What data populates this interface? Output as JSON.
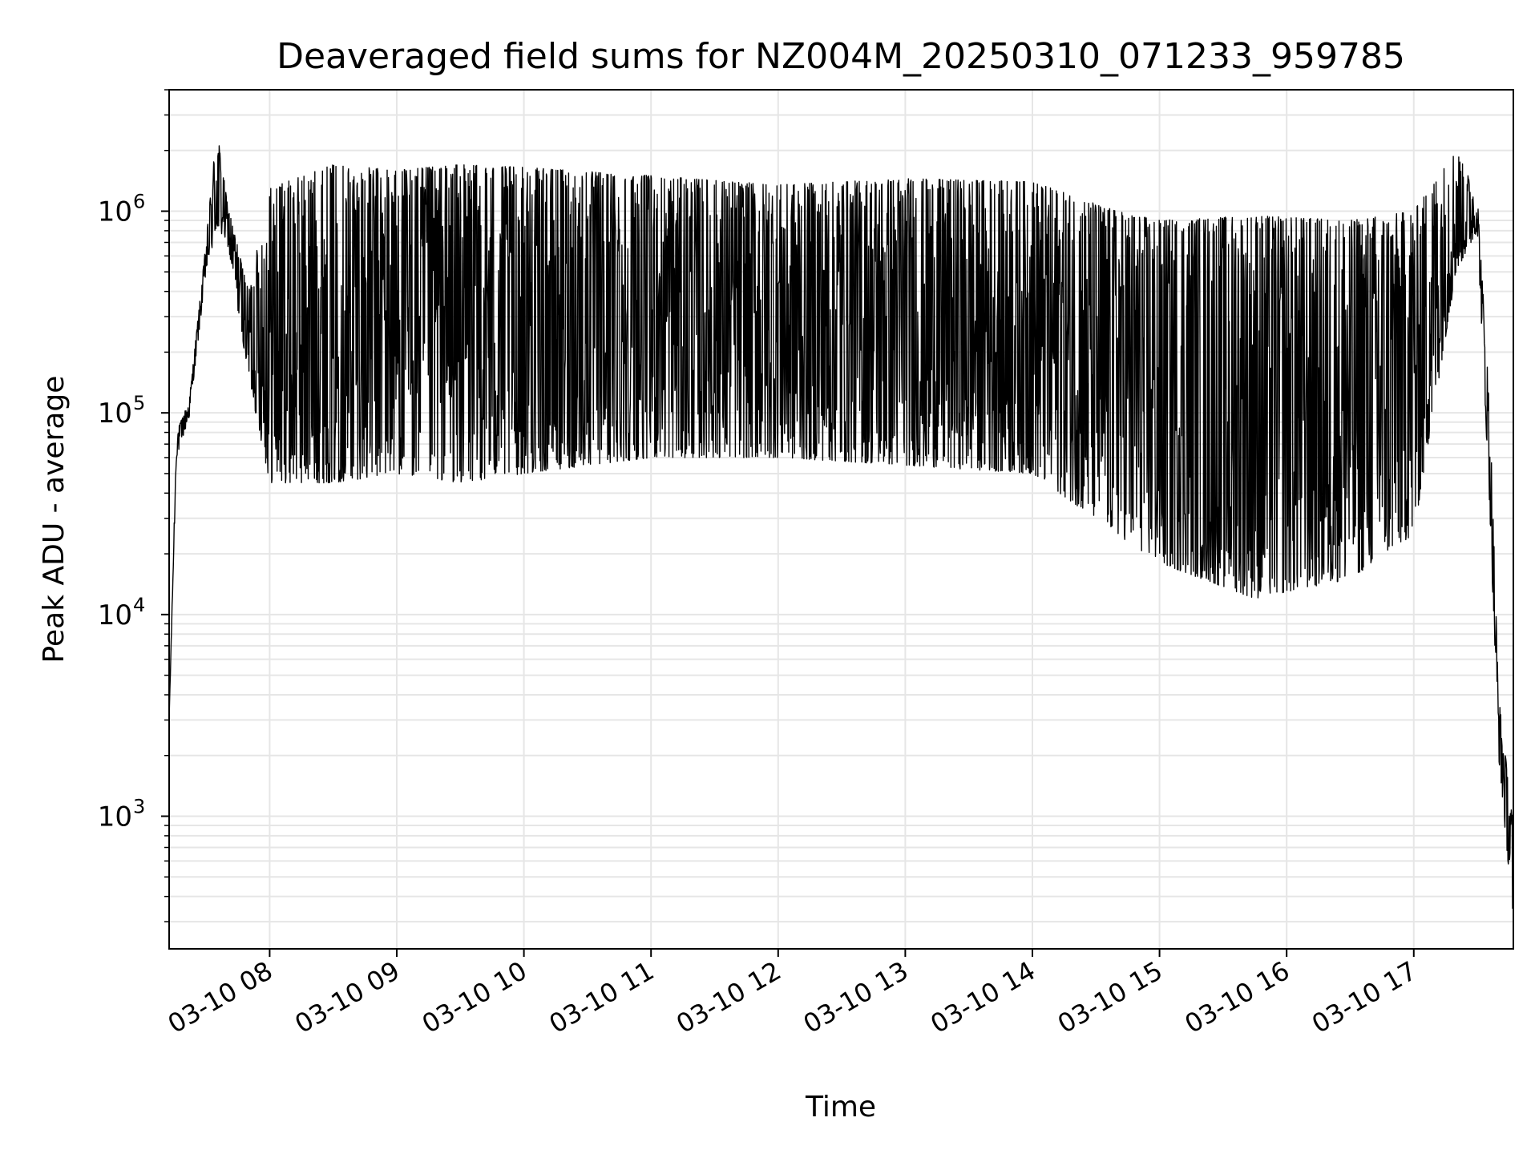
{
  "chart_data": {
    "type": "line",
    "title": "Deaveraged field sums for NZ004M_20250310_071233_959785",
    "xlabel": "Time",
    "ylabel": "Peak ADU - average",
    "yscale": "log",
    "xlim": [
      "2025-03-10T07:12:33",
      "2025-03-10T17:47:00"
    ],
    "ylim": [
      220,
      4000000
    ],
    "grid": true,
    "x_ticks": [
      {
        "value": "2025-03-10T08:00",
        "label": "03-10 08"
      },
      {
        "value": "2025-03-10T09:00",
        "label": "03-10 09"
      },
      {
        "value": "2025-03-10T10:00",
        "label": "03-10 10"
      },
      {
        "value": "2025-03-10T11:00",
        "label": "03-10 11"
      },
      {
        "value": "2025-03-10T12:00",
        "label": "03-10 12"
      },
      {
        "value": "2025-03-10T13:00",
        "label": "03-10 13"
      },
      {
        "value": "2025-03-10T14:00",
        "label": "03-10 14"
      },
      {
        "value": "2025-03-10T15:00",
        "label": "03-10 15"
      },
      {
        "value": "2025-03-10T16:00",
        "label": "03-10 16"
      },
      {
        "value": "2025-03-10T17:00",
        "label": "03-10 17"
      }
    ],
    "y_ticks": [
      {
        "value": 1000,
        "base": "10",
        "exp": "3"
      },
      {
        "value": 10000,
        "base": "10",
        "exp": "4"
      },
      {
        "value": 100000,
        "base": "10",
        "exp": "5"
      },
      {
        "value": 1000000,
        "base": "10",
        "exp": "6"
      }
    ],
    "series_envelope": {
      "description_points": [
        {
          "x": "2025-03-10T07:12:33",
          "high": 3000,
          "low": 3000
        },
        {
          "x": "2025-03-10T07:16:00",
          "high": 80000,
          "low": 60000
        },
        {
          "x": "2025-03-10T07:22:00",
          "high": 115000,
          "low": 95000
        },
        {
          "x": "2025-03-10T07:30:00",
          "high": 700000,
          "low": 500000
        },
        {
          "x": "2025-03-10T07:35:00",
          "high": 2600000,
          "low": 800000
        },
        {
          "x": "2025-03-10T07:40:00",
          "high": 1100000,
          "low": 700000
        },
        {
          "x": "2025-03-10T07:50:00",
          "high": 400000,
          "low": 150000
        },
        {
          "x": "2025-03-10T08:00:00",
          "high": 1300000,
          "low": 45000
        },
        {
          "x": "2025-03-10T08:30:00",
          "high": 1700000,
          "low": 45000
        },
        {
          "x": "2025-03-10T09:00:00",
          "high": 1600000,
          "low": 50000
        },
        {
          "x": "2025-03-10T09:30:00",
          "high": 1700000,
          "low": 45000
        },
        {
          "x": "2025-03-10T10:00:00",
          "high": 1650000,
          "low": 50000
        },
        {
          "x": "2025-03-10T11:00:00",
          "high": 1500000,
          "low": 60000
        },
        {
          "x": "2025-03-10T12:00:00",
          "high": 1350000,
          "low": 60000
        },
        {
          "x": "2025-03-10T13:00:00",
          "high": 1450000,
          "low": 55000
        },
        {
          "x": "2025-03-10T14:00:00",
          "high": 1400000,
          "low": 50000
        },
        {
          "x": "2025-03-10T14:40:00",
          "high": 1000000,
          "low": 25000
        },
        {
          "x": "2025-03-10T15:00:00",
          "high": 900000,
          "low": 18000
        },
        {
          "x": "2025-03-10T15:45:00",
          "high": 950000,
          "low": 12000
        },
        {
          "x": "2025-03-10T16:30:00",
          "high": 900000,
          "low": 15000
        },
        {
          "x": "2025-03-10T17:00:00",
          "high": 1000000,
          "low": 25000
        },
        {
          "x": "2025-03-10T17:20:00",
          "high": 2000000,
          "low": 500000
        },
        {
          "x": "2025-03-10T17:30:00",
          "high": 1200000,
          "low": 800000
        },
        {
          "x": "2025-03-10T17:36:00",
          "high": 100000,
          "low": 30000
        },
        {
          "x": "2025-03-10T17:40:00",
          "high": 4000,
          "low": 2000
        },
        {
          "x": "2025-03-10T17:47:00",
          "high": 900,
          "low": 300
        }
      ]
    },
    "line_color": "#000000",
    "grid_color": "#e6e6e6"
  }
}
